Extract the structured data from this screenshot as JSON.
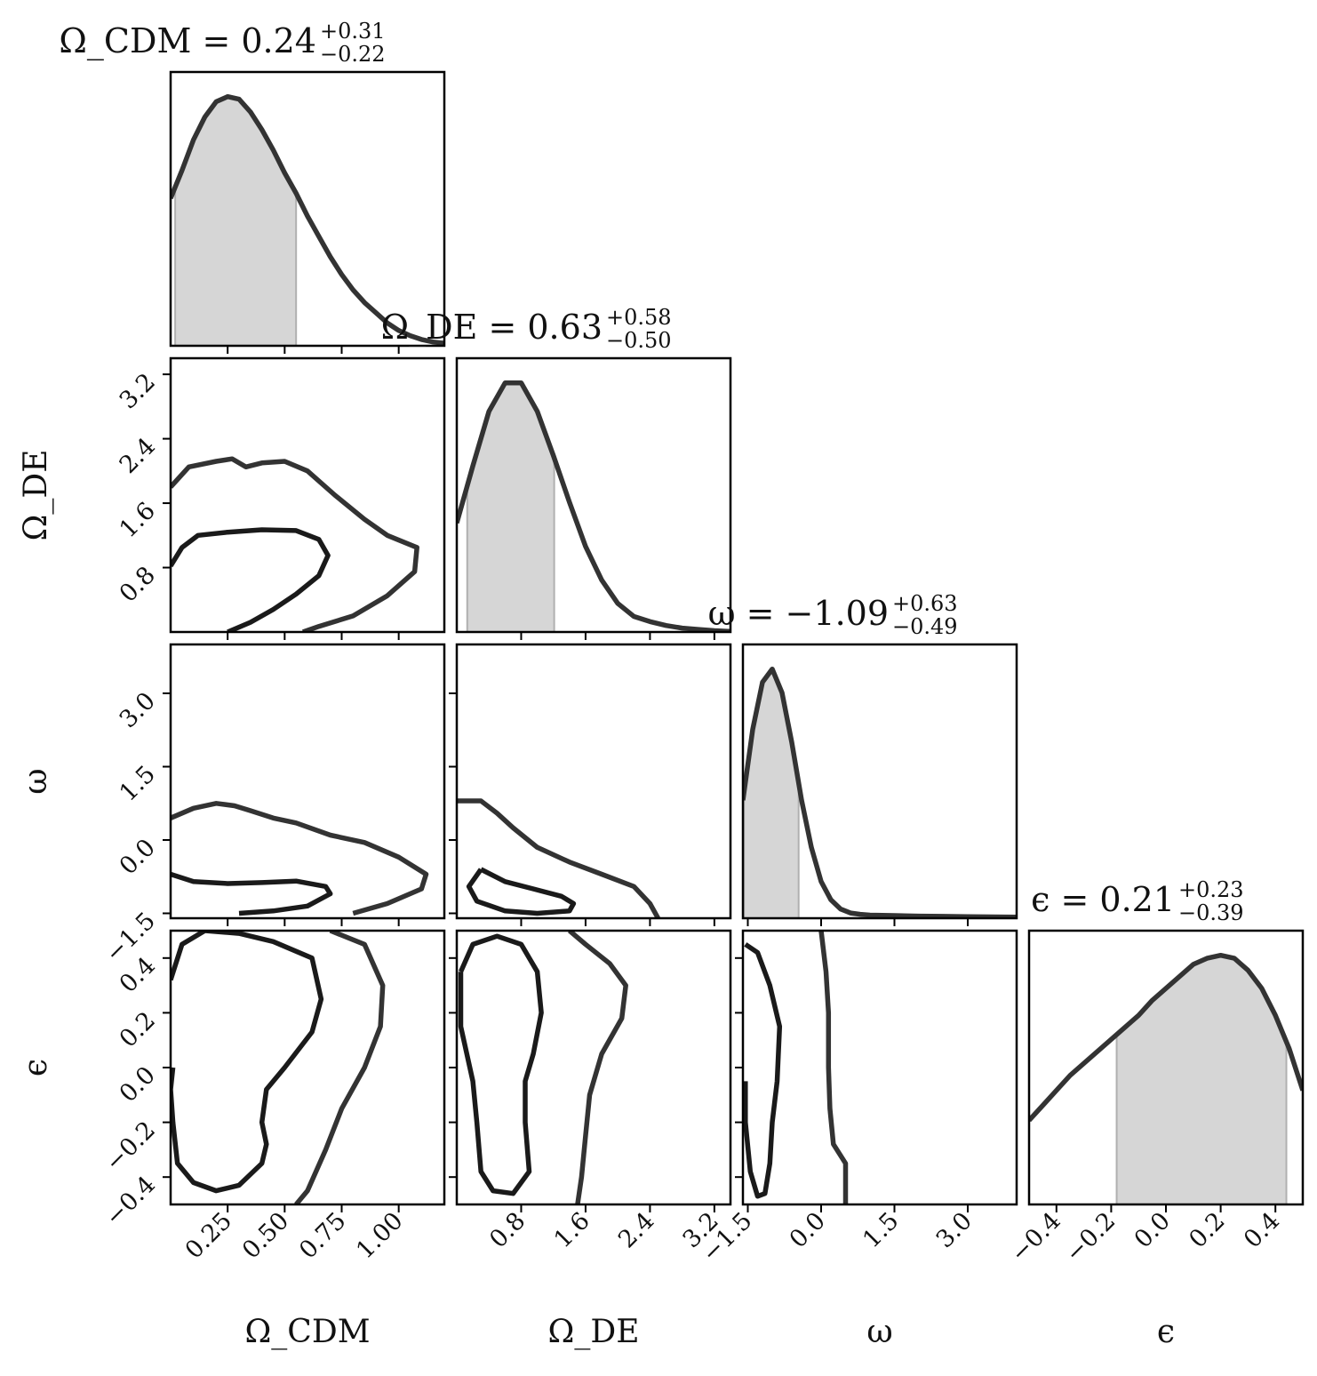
{
  "chart_data": {
    "type": "corner",
    "parameters": [
      {
        "key": "cdm",
        "axis_label": "Ω_CDM",
        "range": [
          0.0,
          1.2
        ],
        "ticks": [
          0.25,
          0.5,
          0.75,
          1.0
        ],
        "tick_labels": [
          "0.25",
          "0.50",
          "0.75",
          "1.00"
        ],
        "title": {
          "name": "Ω_CDM",
          "value": "0.24",
          "plus": "+0.31",
          "minus": "−0.22"
        }
      },
      {
        "key": "de",
        "axis_label": "Ω_DE",
        "range": [
          0.0,
          3.4
        ],
        "ticks": [
          0.8,
          1.6,
          2.4,
          3.2
        ],
        "tick_labels": [
          "0.8",
          "1.6",
          "2.4",
          "3.2"
        ],
        "title": {
          "name": "Ω_DE",
          "value": "0.63",
          "plus": "+0.58",
          "minus": "−0.50"
        }
      },
      {
        "key": "w",
        "axis_label": "ω",
        "range": [
          -1.6,
          4.0
        ],
        "ticks": [
          -1.5,
          0.0,
          1.5,
          3.0
        ],
        "tick_labels": [
          "−1.5",
          "0.0",
          "1.5",
          "3.0"
        ],
        "title": {
          "name": "ω",
          "value": "−1.09",
          "plus": "+0.63",
          "minus": "−0.49"
        }
      },
      {
        "key": "eps",
        "axis_label": "ϵ",
        "range": [
          -0.5,
          0.5
        ],
        "ticks": [
          -0.4,
          -0.2,
          0.0,
          0.2,
          0.4
        ],
        "tick_labels": [
          "−0.4",
          "−0.2",
          "0.0",
          "0.2",
          "0.4"
        ],
        "title": {
          "name": "ϵ",
          "value": "0.21",
          "plus": "+0.23",
          "minus": "−0.39"
        }
      }
    ],
    "marginals": [
      {
        "param": "cdm",
        "x": [
          0.0,
          0.05,
          0.1,
          0.15,
          0.2,
          0.25,
          0.3,
          0.35,
          0.4,
          0.45,
          0.5,
          0.55,
          0.6,
          0.65,
          0.7,
          0.75,
          0.8,
          0.85,
          0.9,
          0.95,
          1.0,
          1.05,
          1.1,
          1.15,
          1.2
        ],
        "density": [
          0.58,
          0.69,
          0.81,
          0.9,
          0.96,
          0.98,
          0.97,
          0.92,
          0.85,
          0.77,
          0.68,
          0.6,
          0.51,
          0.43,
          0.35,
          0.28,
          0.22,
          0.17,
          0.13,
          0.09,
          0.06,
          0.04,
          0.025,
          0.015,
          0.01
        ],
        "shaded": [
          0.02,
          0.55
        ]
      },
      {
        "param": "de",
        "x": [
          0.0,
          0.2,
          0.4,
          0.6,
          0.8,
          1.0,
          1.2,
          1.4,
          1.6,
          1.8,
          2.0,
          2.2,
          2.4,
          2.6,
          2.8,
          3.0,
          3.2,
          3.4
        ],
        "density": [
          0.42,
          0.64,
          0.85,
          0.96,
          0.96,
          0.85,
          0.68,
          0.5,
          0.33,
          0.2,
          0.11,
          0.06,
          0.04,
          0.025,
          0.015,
          0.01,
          0.005,
          0.002
        ],
        "shaded": [
          0.13,
          1.21
        ]
      },
      {
        "param": "w",
        "x": [
          -1.6,
          -1.4,
          -1.2,
          -1.0,
          -0.8,
          -0.6,
          -0.4,
          -0.2,
          0.0,
          0.2,
          0.4,
          0.6,
          0.8,
          1.0,
          1.5,
          2.0,
          2.5,
          3.0,
          3.5,
          4.0
        ],
        "density": [
          0.45,
          0.72,
          0.9,
          0.95,
          0.86,
          0.67,
          0.45,
          0.27,
          0.14,
          0.07,
          0.035,
          0.02,
          0.015,
          0.012,
          0.01,
          0.008,
          0.007,
          0.006,
          0.005,
          0.004
        ],
        "shaded": [
          -1.58,
          -0.46
        ]
      },
      {
        "param": "eps",
        "x": [
          -0.5,
          -0.45,
          -0.4,
          -0.35,
          -0.3,
          -0.25,
          -0.2,
          -0.15,
          -0.1,
          -0.05,
          0.0,
          0.05,
          0.1,
          0.15,
          0.2,
          0.25,
          0.3,
          0.35,
          0.4,
          0.45,
          0.5
        ],
        "density": [
          0.28,
          0.33,
          0.38,
          0.43,
          0.47,
          0.51,
          0.55,
          0.59,
          0.63,
          0.68,
          0.72,
          0.76,
          0.8,
          0.82,
          0.83,
          0.82,
          0.78,
          0.72,
          0.63,
          0.52,
          0.38
        ],
        "shaded": [
          -0.18,
          0.44
        ]
      }
    ],
    "contours": [
      {
        "x": "cdm",
        "y": "de",
        "inner": [
          [
            0.0,
            0.82
          ],
          [
            0.05,
            1.05
          ],
          [
            0.12,
            1.2
          ],
          [
            0.25,
            1.24
          ],
          [
            0.4,
            1.27
          ],
          [
            0.55,
            1.26
          ],
          [
            0.65,
            1.15
          ],
          [
            0.69,
            0.95
          ],
          [
            0.65,
            0.7
          ],
          [
            0.55,
            0.47
          ],
          [
            0.45,
            0.28
          ],
          [
            0.35,
            0.12
          ],
          [
            0.25,
            0.0
          ]
        ],
        "outer": [
          [
            0.0,
            1.8
          ],
          [
            0.08,
            2.05
          ],
          [
            0.2,
            2.12
          ],
          [
            0.27,
            2.15
          ],
          [
            0.33,
            2.05
          ],
          [
            0.4,
            2.1
          ],
          [
            0.5,
            2.12
          ],
          [
            0.6,
            2.0
          ],
          [
            0.72,
            1.7
          ],
          [
            0.85,
            1.4
          ],
          [
            0.95,
            1.2
          ],
          [
            1.08,
            1.05
          ],
          [
            1.07,
            0.75
          ],
          [
            0.95,
            0.45
          ],
          [
            0.8,
            0.2
          ],
          [
            0.65,
            0.07
          ],
          [
            0.58,
            0.0
          ]
        ]
      },
      {
        "x": "cdm",
        "y": "w",
        "inner": [
          [
            0.0,
            -0.7
          ],
          [
            0.1,
            -0.85
          ],
          [
            0.25,
            -0.89
          ],
          [
            0.4,
            -0.87
          ],
          [
            0.55,
            -0.84
          ],
          [
            0.68,
            -0.95
          ],
          [
            0.7,
            -1.1
          ],
          [
            0.6,
            -1.35
          ],
          [
            0.45,
            -1.45
          ],
          [
            0.3,
            -1.5
          ]
        ],
        "outer": [
          [
            0.0,
            0.45
          ],
          [
            0.1,
            0.65
          ],
          [
            0.2,
            0.75
          ],
          [
            0.28,
            0.7
          ],
          [
            0.35,
            0.6
          ],
          [
            0.45,
            0.45
          ],
          [
            0.55,
            0.35
          ],
          [
            0.7,
            0.1
          ],
          [
            0.85,
            -0.05
          ],
          [
            1.0,
            -0.35
          ],
          [
            1.12,
            -0.7
          ],
          [
            1.1,
            -1.0
          ],
          [
            0.95,
            -1.3
          ],
          [
            0.8,
            -1.5
          ]
        ]
      },
      {
        "x": "de",
        "y": "w",
        "inner": [
          [
            0.3,
            -0.6
          ],
          [
            0.6,
            -0.85
          ],
          [
            0.95,
            -1.0
          ],
          [
            1.3,
            -1.15
          ],
          [
            1.45,
            -1.3
          ],
          [
            1.4,
            -1.45
          ],
          [
            1.0,
            -1.5
          ],
          [
            0.6,
            -1.45
          ],
          [
            0.25,
            -1.25
          ],
          [
            0.15,
            -0.95
          ],
          [
            0.3,
            -0.6
          ]
        ],
        "outer": [
          [
            0.0,
            0.8
          ],
          [
            0.3,
            0.8
          ],
          [
            0.5,
            0.55
          ],
          [
            0.7,
            0.25
          ],
          [
            1.0,
            -0.15
          ],
          [
            1.4,
            -0.45
          ],
          [
            1.8,
            -0.7
          ],
          [
            2.2,
            -0.95
          ],
          [
            2.4,
            -1.3
          ],
          [
            2.5,
            -1.6
          ]
        ]
      },
      {
        "x": "cdm",
        "y": "eps",
        "inner": [
          [
            0.0,
            0.32
          ],
          [
            0.05,
            0.45
          ],
          [
            0.15,
            0.5
          ],
          [
            0.3,
            0.49
          ],
          [
            0.45,
            0.46
          ],
          [
            0.62,
            0.4
          ],
          [
            0.66,
            0.25
          ],
          [
            0.62,
            0.13
          ],
          [
            0.5,
            0.0
          ],
          [
            0.42,
            -0.08
          ],
          [
            0.4,
            -0.2
          ],
          [
            0.42,
            -0.28
          ],
          [
            0.4,
            -0.35
          ],
          [
            0.3,
            -0.43
          ],
          [
            0.2,
            -0.45
          ],
          [
            0.1,
            -0.42
          ],
          [
            0.03,
            -0.35
          ],
          [
            0.01,
            -0.2
          ],
          [
            0.0,
            -0.08
          ],
          [
            0.01,
            0.0
          ]
        ],
        "outer": [
          [
            0.7,
            0.5
          ],
          [
            0.85,
            0.45
          ],
          [
            0.93,
            0.3
          ],
          [
            0.92,
            0.15
          ],
          [
            0.85,
            0.0
          ],
          [
            0.75,
            -0.15
          ],
          [
            0.68,
            -0.3
          ],
          [
            0.6,
            -0.45
          ],
          [
            0.55,
            -0.5
          ]
        ]
      },
      {
        "x": "de",
        "y": "eps",
        "inner": [
          [
            0.05,
            0.35
          ],
          [
            0.2,
            0.45
          ],
          [
            0.5,
            0.48
          ],
          [
            0.8,
            0.45
          ],
          [
            1.0,
            0.35
          ],
          [
            1.05,
            0.2
          ],
          [
            0.95,
            0.05
          ],
          [
            0.85,
            -0.05
          ],
          [
            0.85,
            -0.2
          ],
          [
            0.9,
            -0.38
          ],
          [
            0.7,
            -0.46
          ],
          [
            0.45,
            -0.45
          ],
          [
            0.3,
            -0.38
          ],
          [
            0.25,
            -0.2
          ],
          [
            0.2,
            -0.05
          ],
          [
            0.05,
            0.15
          ],
          [
            0.05,
            0.35
          ]
        ],
        "outer": [
          [
            1.4,
            0.5
          ],
          [
            1.6,
            0.45
          ],
          [
            1.9,
            0.38
          ],
          [
            2.1,
            0.3
          ],
          [
            2.05,
            0.18
          ],
          [
            1.8,
            0.05
          ],
          [
            1.65,
            -0.1
          ],
          [
            1.6,
            -0.25
          ],
          [
            1.55,
            -0.4
          ],
          [
            1.5,
            -0.5
          ]
        ]
      },
      {
        "x": "w",
        "y": "eps",
        "inner": [
          [
            -1.55,
            0.45
          ],
          [
            -1.3,
            0.42
          ],
          [
            -1.05,
            0.3
          ],
          [
            -0.85,
            0.15
          ],
          [
            -0.9,
            -0.05
          ],
          [
            -1.0,
            -0.2
          ],
          [
            -1.05,
            -0.35
          ],
          [
            -1.15,
            -0.46
          ],
          [
            -1.3,
            -0.47
          ],
          [
            -1.45,
            -0.38
          ],
          [
            -1.55,
            -0.2
          ],
          [
            -1.55,
            -0.05
          ]
        ],
        "outer": [
          [
            0.0,
            0.5
          ],
          [
            0.1,
            0.35
          ],
          [
            0.15,
            0.2
          ],
          [
            0.15,
            0.0
          ],
          [
            0.18,
            -0.15
          ],
          [
            0.25,
            -0.28
          ],
          [
            0.5,
            -0.35
          ],
          [
            0.5,
            -0.5
          ]
        ]
      }
    ],
    "colors": {
      "line": "#333333",
      "contour": "#1a1a1a",
      "shade": "#d6d6d6",
      "shade_edge": "#b0b0b0"
    }
  }
}
